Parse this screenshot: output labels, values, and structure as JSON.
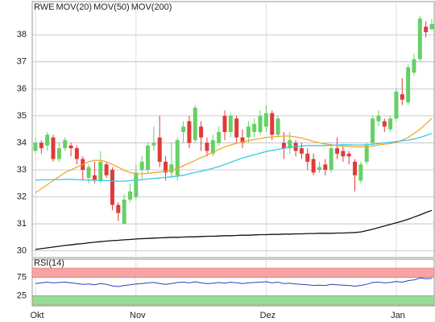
{
  "chart_data": [
    {
      "type": "candlestick",
      "categories": [
        "Okt",
        null,
        null,
        null,
        null,
        null,
        null,
        null,
        null,
        null,
        null,
        null,
        null,
        null,
        null,
        null,
        null,
        "Nov",
        null,
        null,
        null,
        null,
        null,
        null,
        null,
        null,
        null,
        null,
        null,
        null,
        null,
        null,
        null,
        null,
        null,
        null,
        null,
        null,
        null,
        "Dez",
        null,
        null,
        null,
        null,
        null,
        null,
        null,
        null,
        null,
        null,
        null,
        null,
        null,
        null,
        null,
        null,
        null,
        null,
        null,
        null,
        null,
        "Jan",
        null,
        null,
        null,
        null,
        null,
        null
      ],
      "ylim": [
        29.75,
        39.2
      ],
      "yticks": [
        30,
        31,
        32,
        33,
        34,
        35,
        36,
        37,
        38
      ],
      "grid": true,
      "series": [
        {
          "name": "RWE",
          "color": "#e8583a",
          "up_color": "#66d066",
          "down_color": "#e03a3a",
          "open": [
            33.7,
            34.0,
            33.9,
            34.2,
            33.4,
            33.8,
            33.9,
            33.8,
            33.4,
            32.7,
            32.8,
            32.6,
            33.2,
            33.0,
            31.7,
            31.0,
            31.9,
            32.0,
            33.0,
            33.0,
            33.9,
            34.2,
            33.3,
            32.9,
            32.8,
            34.4,
            34.8,
            34.1,
            34.6,
            34.0,
            33.6,
            34.0,
            35.0,
            34.4,
            34.9,
            34.2,
            34.2,
            34.4,
            34.4,
            34.6,
            35.1,
            34.3,
            34.0,
            33.8,
            34.0,
            33.8,
            33.6,
            33.4,
            33.0,
            33.2,
            33.0,
            33.8,
            33.7,
            33.6,
            33.3,
            32.6,
            33.3,
            34.0,
            34.8,
            34.8,
            34.5,
            34.9,
            35.8,
            35.5,
            36.6,
            37.1,
            38.3,
            38.2
          ],
          "high": [
            34.2,
            34.1,
            34.4,
            34.3,
            34.0,
            34.2,
            34.0,
            33.9,
            33.5,
            33.2,
            33.3,
            33.7,
            33.3,
            33.1,
            31.8,
            32.1,
            32.5,
            33.2,
            33.5,
            34.0,
            34.6,
            35.0,
            33.5,
            34.0,
            34.2,
            34.8,
            35.0,
            35.4,
            34.8,
            34.2,
            34.3,
            34.6,
            35.2,
            35.1,
            35.0,
            34.5,
            34.8,
            34.9,
            35.2,
            35.4,
            35.2,
            35.0,
            34.4,
            34.4,
            34.1,
            34.0,
            33.8,
            33.6,
            33.3,
            33.4,
            33.9,
            34.2,
            33.9,
            33.7,
            33.4,
            33.3,
            34.0,
            35.0,
            35.2,
            34.9,
            35.0,
            36.0,
            36.4,
            36.9,
            37.3,
            38.7,
            38.5,
            38.6
          ],
          "low": [
            33.6,
            33.6,
            33.7,
            33.3,
            33.3,
            33.7,
            33.5,
            33.2,
            32.6,
            32.5,
            32.5,
            32.5,
            32.7,
            31.5,
            31.1,
            31.0,
            31.8,
            31.9,
            32.6,
            32.9,
            33.7,
            33.1,
            32.6,
            32.7,
            32.6,
            34.0,
            33.8,
            34.0,
            33.7,
            33.5,
            33.5,
            33.9,
            34.1,
            34.2,
            34.0,
            33.8,
            34.0,
            34.2,
            34.3,
            34.4,
            34.1,
            34.2,
            33.4,
            33.6,
            33.5,
            33.4,
            33.0,
            32.8,
            32.9,
            32.8,
            32.9,
            33.4,
            33.3,
            33.2,
            32.2,
            32.5,
            33.2,
            33.9,
            34.6,
            34.4,
            34.4,
            34.8,
            35.4,
            35.4,
            36.5,
            37.0,
            37.9,
            38.2
          ],
          "close": [
            34.0,
            33.8,
            34.3,
            33.4,
            33.8,
            34.1,
            33.8,
            33.4,
            33.0,
            33.1,
            32.6,
            33.3,
            32.8,
            31.7,
            31.4,
            31.9,
            32.2,
            32.9,
            33.3,
            33.9,
            34.0,
            33.3,
            32.9,
            33.2,
            34.1,
            34.6,
            34.0,
            35.3,
            34.2,
            33.7,
            34.1,
            34.4,
            34.4,
            35.0,
            34.2,
            34.0,
            34.6,
            34.7,
            35.0,
            35.1,
            34.3,
            34.9,
            33.8,
            34.1,
            33.7,
            33.6,
            33.3,
            32.9,
            33.1,
            33.0,
            33.8,
            33.6,
            33.5,
            33.5,
            32.8,
            33.2,
            33.9,
            34.9,
            35.0,
            34.6,
            34.9,
            35.9,
            35.6,
            36.8,
            37.1,
            38.6,
            38.1,
            38.4
          ]
        },
        {
          "name": "MOV(20)",
          "color": "#f0a830",
          "values": [
            32.15,
            32.3,
            32.45,
            32.6,
            32.75,
            32.9,
            33.0,
            33.1,
            33.2,
            33.3,
            33.35,
            33.35,
            33.3,
            33.2,
            33.1,
            32.98,
            32.9,
            32.85,
            32.85,
            32.87,
            32.9,
            32.92,
            32.95,
            32.98,
            33.05,
            33.15,
            33.25,
            33.35,
            33.45,
            33.55,
            33.65,
            33.75,
            33.85,
            33.92,
            33.98,
            34.03,
            34.08,
            34.12,
            34.16,
            34.2,
            34.22,
            34.24,
            34.25,
            34.25,
            34.22,
            34.18,
            34.12,
            34.05,
            34.0,
            33.96,
            33.93,
            33.9,
            33.88,
            33.87,
            33.85,
            33.85,
            33.86,
            33.88,
            33.92,
            33.95,
            33.97,
            34.02,
            34.1,
            34.2,
            34.35,
            34.5,
            34.7,
            34.9
          ]
        },
        {
          "name": "MOV(50)",
          "color": "#38c8e8",
          "values": [
            32.62,
            32.63,
            32.63,
            32.64,
            32.64,
            32.65,
            32.65,
            32.64,
            32.63,
            32.62,
            32.62,
            32.61,
            32.6,
            32.59,
            32.58,
            32.58,
            32.6,
            32.62,
            32.64,
            32.66,
            32.68,
            32.7,
            32.72,
            32.74,
            32.77,
            32.8,
            32.85,
            32.9,
            32.95,
            33.0,
            33.06,
            33.12,
            33.2,
            33.28,
            33.36,
            33.44,
            33.5,
            33.56,
            33.62,
            33.68,
            33.72,
            33.76,
            33.8,
            33.83,
            33.86,
            33.88,
            33.9,
            33.9,
            33.9,
            33.9,
            33.91,
            33.92,
            33.93,
            33.93,
            33.92,
            33.92,
            33.93,
            33.95,
            33.97,
            34.0,
            34.02,
            34.05,
            34.08,
            34.1,
            34.14,
            34.2,
            34.27,
            34.35
          ]
        },
        {
          "name": "MOV(200)",
          "color": "#111111",
          "values": [
            30.05,
            30.08,
            30.11,
            30.14,
            30.17,
            30.2,
            30.22,
            30.25,
            30.27,
            30.3,
            30.32,
            30.34,
            30.36,
            30.38,
            30.39,
            30.41,
            30.42,
            30.44,
            30.45,
            30.46,
            30.47,
            30.48,
            30.49,
            30.5,
            30.5,
            30.51,
            30.52,
            30.52,
            30.53,
            30.54,
            30.54,
            30.55,
            30.56,
            30.56,
            30.57,
            30.58,
            30.58,
            30.59,
            30.6,
            30.6,
            30.61,
            30.61,
            30.62,
            30.62,
            30.63,
            30.63,
            30.64,
            30.64,
            30.65,
            30.65,
            30.65,
            30.66,
            30.66,
            30.67,
            30.68,
            30.7,
            30.75,
            30.8,
            30.86,
            30.92,
            30.98,
            31.04,
            31.1,
            31.17,
            31.25,
            31.33,
            31.42,
            31.5
          ]
        }
      ]
    },
    {
      "type": "line",
      "ylim": [
        0,
        100
      ],
      "yticks": [
        25,
        75
      ],
      "bands": [
        {
          "from": 75,
          "to": 100,
          "color": "#f7a3a3"
        },
        {
          "from": 0,
          "to": 25,
          "color": "#95dd95"
        }
      ],
      "series": [
        {
          "name": "RSI(14)",
          "color": "#2a3fc0",
          "values": [
            58,
            60,
            62,
            60,
            61,
            62,
            60,
            58,
            56,
            57,
            55,
            58,
            56,
            52,
            50,
            53,
            55,
            57,
            58,
            60,
            61,
            58,
            56,
            58,
            61,
            62,
            60,
            63,
            60,
            58,
            59,
            61,
            59,
            62,
            60,
            58,
            60,
            61,
            62,
            63,
            60,
            62,
            58,
            59,
            57,
            56,
            55,
            53,
            54,
            53,
            56,
            55,
            54,
            53,
            51,
            53,
            56,
            61,
            62,
            60,
            61,
            64,
            62,
            66,
            68,
            73,
            71,
            72
          ]
        }
      ]
    }
  ]
}
